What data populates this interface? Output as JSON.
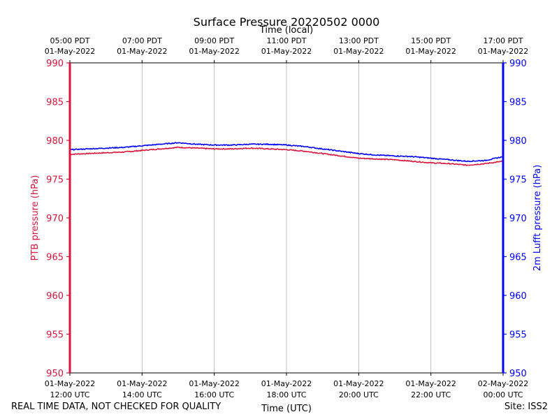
{
  "chart_data": {
    "type": "line",
    "title": "Surface Pressure 20220502 0000",
    "top_axis_label": "Time (local)",
    "xlabel": "Time (UTC)",
    "ylabel_left": "PTB pressure (hPa)",
    "ylabel_right": "2m Lufft pressure (hPa)",
    "ylim": [
      950,
      990
    ],
    "yticks": [
      950,
      955,
      960,
      965,
      970,
      975,
      980,
      985,
      990
    ],
    "x_range_hours": [
      0,
      12
    ],
    "grid": "vertical",
    "bottom_ticks": [
      {
        "hour": 0,
        "line1": "01-May-2022",
        "line2": "12:00 UTC"
      },
      {
        "hour": 2,
        "line1": "01-May-2022",
        "line2": "14:00 UTC"
      },
      {
        "hour": 4,
        "line1": "01-May-2022",
        "line2": "16:00 UTC"
      },
      {
        "hour": 6,
        "line1": "01-May-2022",
        "line2": "18:00 UTC"
      },
      {
        "hour": 8,
        "line1": "01-May-2022",
        "line2": "20:00 UTC"
      },
      {
        "hour": 10,
        "line1": "01-May-2022",
        "line2": "22:00 UTC"
      },
      {
        "hour": 12,
        "line1": "02-May-2022",
        "line2": "00:00 UTC"
      }
    ],
    "top_ticks": [
      {
        "hour": 0,
        "line1": "05:00 PDT",
        "line2": "01-May-2022"
      },
      {
        "hour": 2,
        "line1": "07:00 PDT",
        "line2": "01-May-2022"
      },
      {
        "hour": 4,
        "line1": "09:00 PDT",
        "line2": "01-May-2022"
      },
      {
        "hour": 6,
        "line1": "11:00 PDT",
        "line2": "01-May-2022"
      },
      {
        "hour": 8,
        "line1": "13:00 PDT",
        "line2": "01-May-2022"
      },
      {
        "hour": 10,
        "line1": "15:00 PDT",
        "line2": "01-May-2022"
      },
      {
        "hour": 12,
        "line1": "17:00 PDT",
        "line2": "01-May-2022"
      }
    ],
    "series": [
      {
        "name": "PTB pressure",
        "axis": "left",
        "color": "#dc143c",
        "x": [
          0,
          0.5,
          1,
          1.5,
          2,
          2.5,
          3,
          3.5,
          4,
          4.5,
          5,
          5.5,
          6,
          6.5,
          7,
          7.5,
          8,
          8.5,
          9,
          9.5,
          10,
          10.5,
          11,
          11.5,
          12
        ],
        "values": [
          978.2,
          978.3,
          978.4,
          978.5,
          978.7,
          978.9,
          979.1,
          979.0,
          978.9,
          978.9,
          979.0,
          978.9,
          978.8,
          978.6,
          978.3,
          978.0,
          977.7,
          977.6,
          977.5,
          977.3,
          977.1,
          977.0,
          976.8,
          977.0,
          977.3
        ]
      },
      {
        "name": "2m Lufft pressure",
        "axis": "right",
        "color": "#0000ff",
        "x": [
          0,
          0.5,
          1,
          1.5,
          2,
          2.5,
          3,
          3.5,
          4,
          4.5,
          5,
          5.5,
          6,
          6.5,
          7,
          7.5,
          8,
          8.5,
          9,
          9.5,
          10,
          10.5,
          11,
          11.5,
          12
        ],
        "values": [
          978.8,
          978.9,
          979.0,
          979.1,
          979.3,
          979.5,
          979.7,
          979.5,
          979.4,
          979.4,
          979.5,
          979.5,
          979.4,
          979.2,
          978.9,
          978.6,
          978.3,
          978.1,
          978.0,
          977.9,
          977.7,
          977.5,
          977.3,
          977.4,
          977.9
        ]
      }
    ]
  },
  "footer": {
    "left": "REAL TIME DATA, NOT CHECKED FOR QUALITY",
    "right": "Site: ISS2"
  }
}
